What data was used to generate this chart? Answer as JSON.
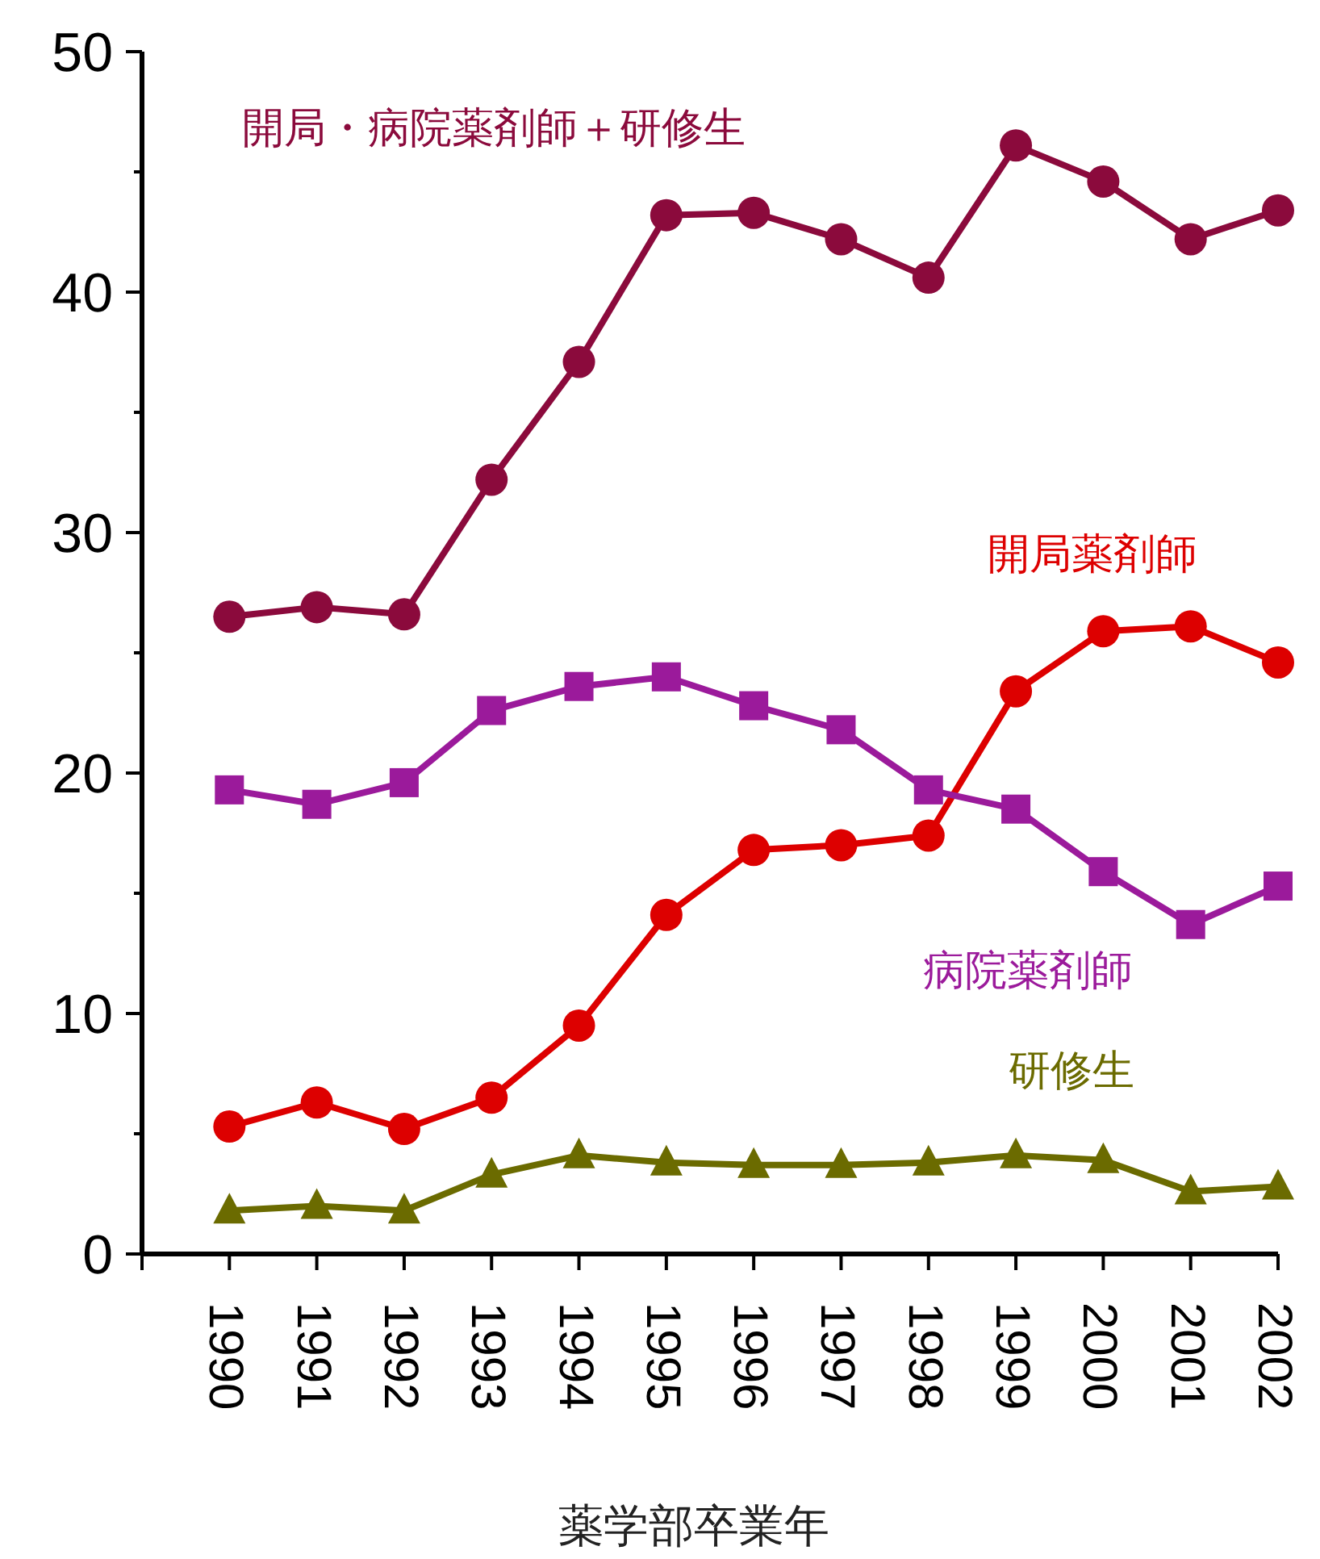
{
  "chart_data": {
    "type": "line",
    "xlabel": "薬学部卒業年",
    "categories": [
      "1990",
      "1991",
      "1992",
      "1993",
      "1994",
      "1995",
      "1996",
      "1997",
      "1998",
      "1999",
      "2000",
      "2001",
      "2002"
    ],
    "ylim": [
      0,
      50
    ],
    "yticks": [
      0,
      10,
      20,
      30,
      40,
      50
    ],
    "grid": false,
    "legend": false,
    "series": [
      {
        "name": "開局・病院薬剤師＋研修生",
        "color": "#8b0a3c",
        "marker": "circle",
        "values": [
          26.5,
          26.9,
          26.6,
          32.2,
          37.1,
          43.2,
          43.3,
          42.2,
          40.6,
          46.1,
          44.6,
          42.2,
          43.4
        ]
      },
      {
        "name": "開局薬剤師",
        "color": "#dd0000",
        "marker": "circle",
        "values": [
          5.3,
          6.3,
          5.2,
          6.5,
          9.5,
          14.1,
          16.8,
          17.0,
          17.4,
          23.4,
          25.9,
          26.1,
          24.6
        ]
      },
      {
        "name": "病院薬剤師",
        "color": "#9b1a9b",
        "marker": "square",
        "values": [
          19.3,
          18.7,
          19.6,
          22.6,
          23.6,
          24.0,
          22.8,
          21.8,
          19.3,
          18.5,
          15.9,
          13.7,
          15.3
        ]
      },
      {
        "name": "研修生",
        "color": "#6b6b00",
        "marker": "triangle",
        "values": [
          1.8,
          2.0,
          1.8,
          3.3,
          4.1,
          3.8,
          3.7,
          3.7,
          3.8,
          4.1,
          3.9,
          2.6,
          2.8
        ]
      }
    ]
  }
}
